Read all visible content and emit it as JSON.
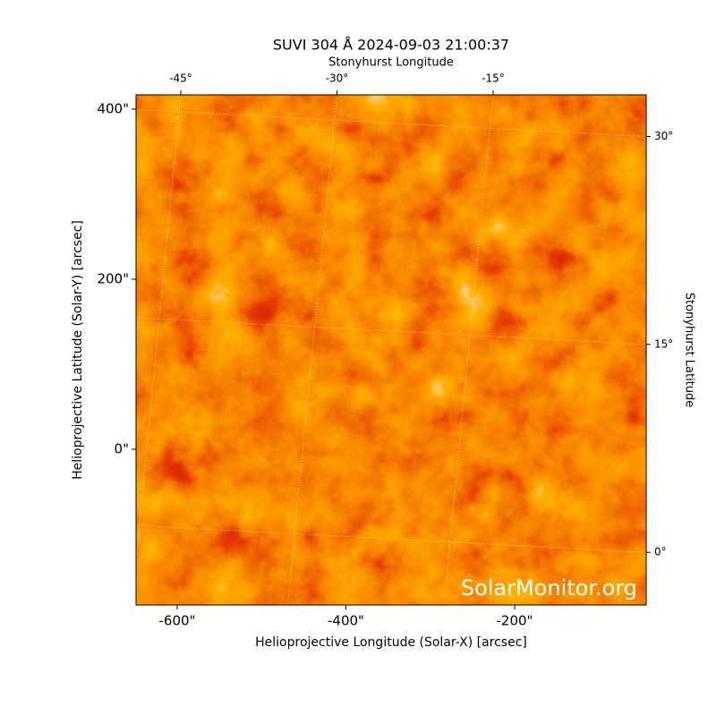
{
  "chart_data": {
    "type": "image",
    "title": "SUVI 304 Å 2024-09-03 21:00:37",
    "xlabel": "Helioprojective Longitude (Solar-X) [arcsec]",
    "ylabel": "Helioprojective Latitude (Solar-Y) [arcsec]",
    "x2label": "Stonyhurst Longitude",
    "y2label": "Stonyhurst Latitude",
    "watermark": "SolarMonitor.org",
    "xlim": [
      -648.8,
      -44
    ],
    "ylim": [
      -183.2,
      416.8
    ],
    "xticks": [
      {
        "value": -600,
        "label": "-600\""
      },
      {
        "value": -400,
        "label": "-400\""
      },
      {
        "value": -200,
        "label": "-200\""
      }
    ],
    "yticks": [
      {
        "value": 0,
        "label": "0\""
      },
      {
        "value": 200,
        "label": "200\""
      },
      {
        "value": 400,
        "label": "400\""
      }
    ],
    "x2lim": [
      -49.3,
      -0.3
    ],
    "x2ticks": [
      {
        "value": -45,
        "label": "-45°"
      },
      {
        "value": -30,
        "label": "-30°"
      },
      {
        "value": -15,
        "label": "-15°"
      }
    ],
    "y2lim": [
      -3.8,
      33
    ],
    "y2ticks": [
      {
        "value": 0,
        "label": "0°"
      },
      {
        "value": 15,
        "label": "15°"
      },
      {
        "value": 30,
        "label": "30°"
      }
    ],
    "grid": true
  }
}
